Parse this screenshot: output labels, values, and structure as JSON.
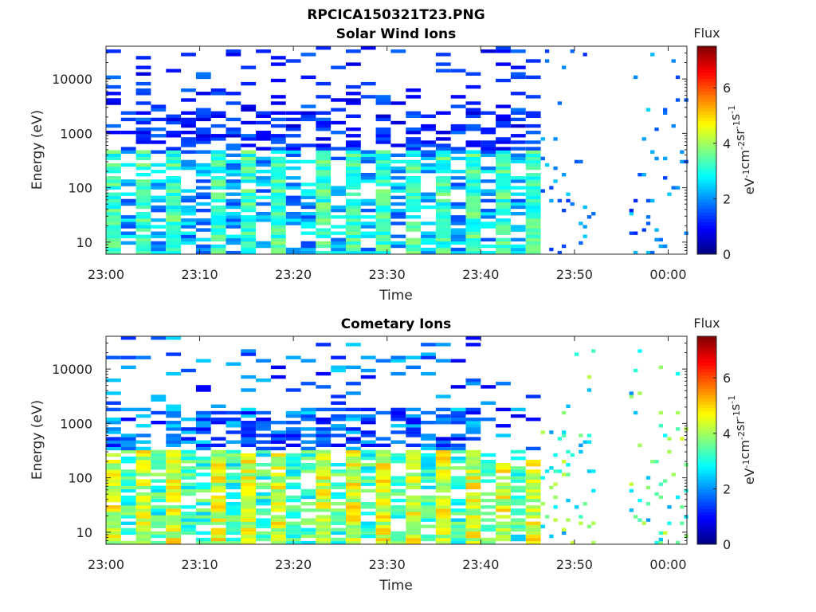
{
  "figure_title": "RPCICA150321T23.PNG",
  "colors": {
    "colormap": "jet",
    "axis": "#262626",
    "background": "#ffffff"
  },
  "chart_data": [
    {
      "type": "heatmap",
      "title": "Solar Wind Ions",
      "xlabel": "Time",
      "ylabel": "Energy (eV)",
      "x_range": [
        "23:00",
        "00:02"
      ],
      "x_ticks": [
        "23:00",
        "23:10",
        "23:20",
        "23:30",
        "23:40",
        "23:50",
        "00:00"
      ],
      "y_scale": "log",
      "y_range": [
        6,
        40000
      ],
      "y_ticks": [
        10,
        100,
        1000,
        10000
      ],
      "y_tick_labels": [
        "10",
        "100",
        "1000",
        "10000"
      ],
      "colorbar": {
        "title": "Flux",
        "label": "eV-1cm-2sr-1s-1",
        "range": [
          0,
          7.5
        ],
        "ticks": [
          "0",
          "2",
          "4",
          "6"
        ]
      },
      "profile": "sw"
    },
    {
      "type": "heatmap",
      "title": "Cometary Ions",
      "xlabel": "Time",
      "ylabel": "Energy (eV)",
      "x_range": [
        "23:00",
        "00:02"
      ],
      "x_ticks": [
        "23:00",
        "23:10",
        "23:20",
        "23:30",
        "23:40",
        "23:50",
        "00:00"
      ],
      "y_scale": "log",
      "y_range": [
        6,
        40000
      ],
      "y_ticks": [
        10,
        100,
        1000,
        10000
      ],
      "y_tick_labels": [
        "10",
        "100",
        "1000",
        "10000"
      ],
      "colorbar": {
        "title": "Flux",
        "label": "eV-1cm-2sr-1s-1",
        "range": [
          0,
          7.5
        ],
        "ticks": [
          "0",
          "2",
          "4",
          "6"
        ]
      },
      "profile": "com"
    }
  ]
}
